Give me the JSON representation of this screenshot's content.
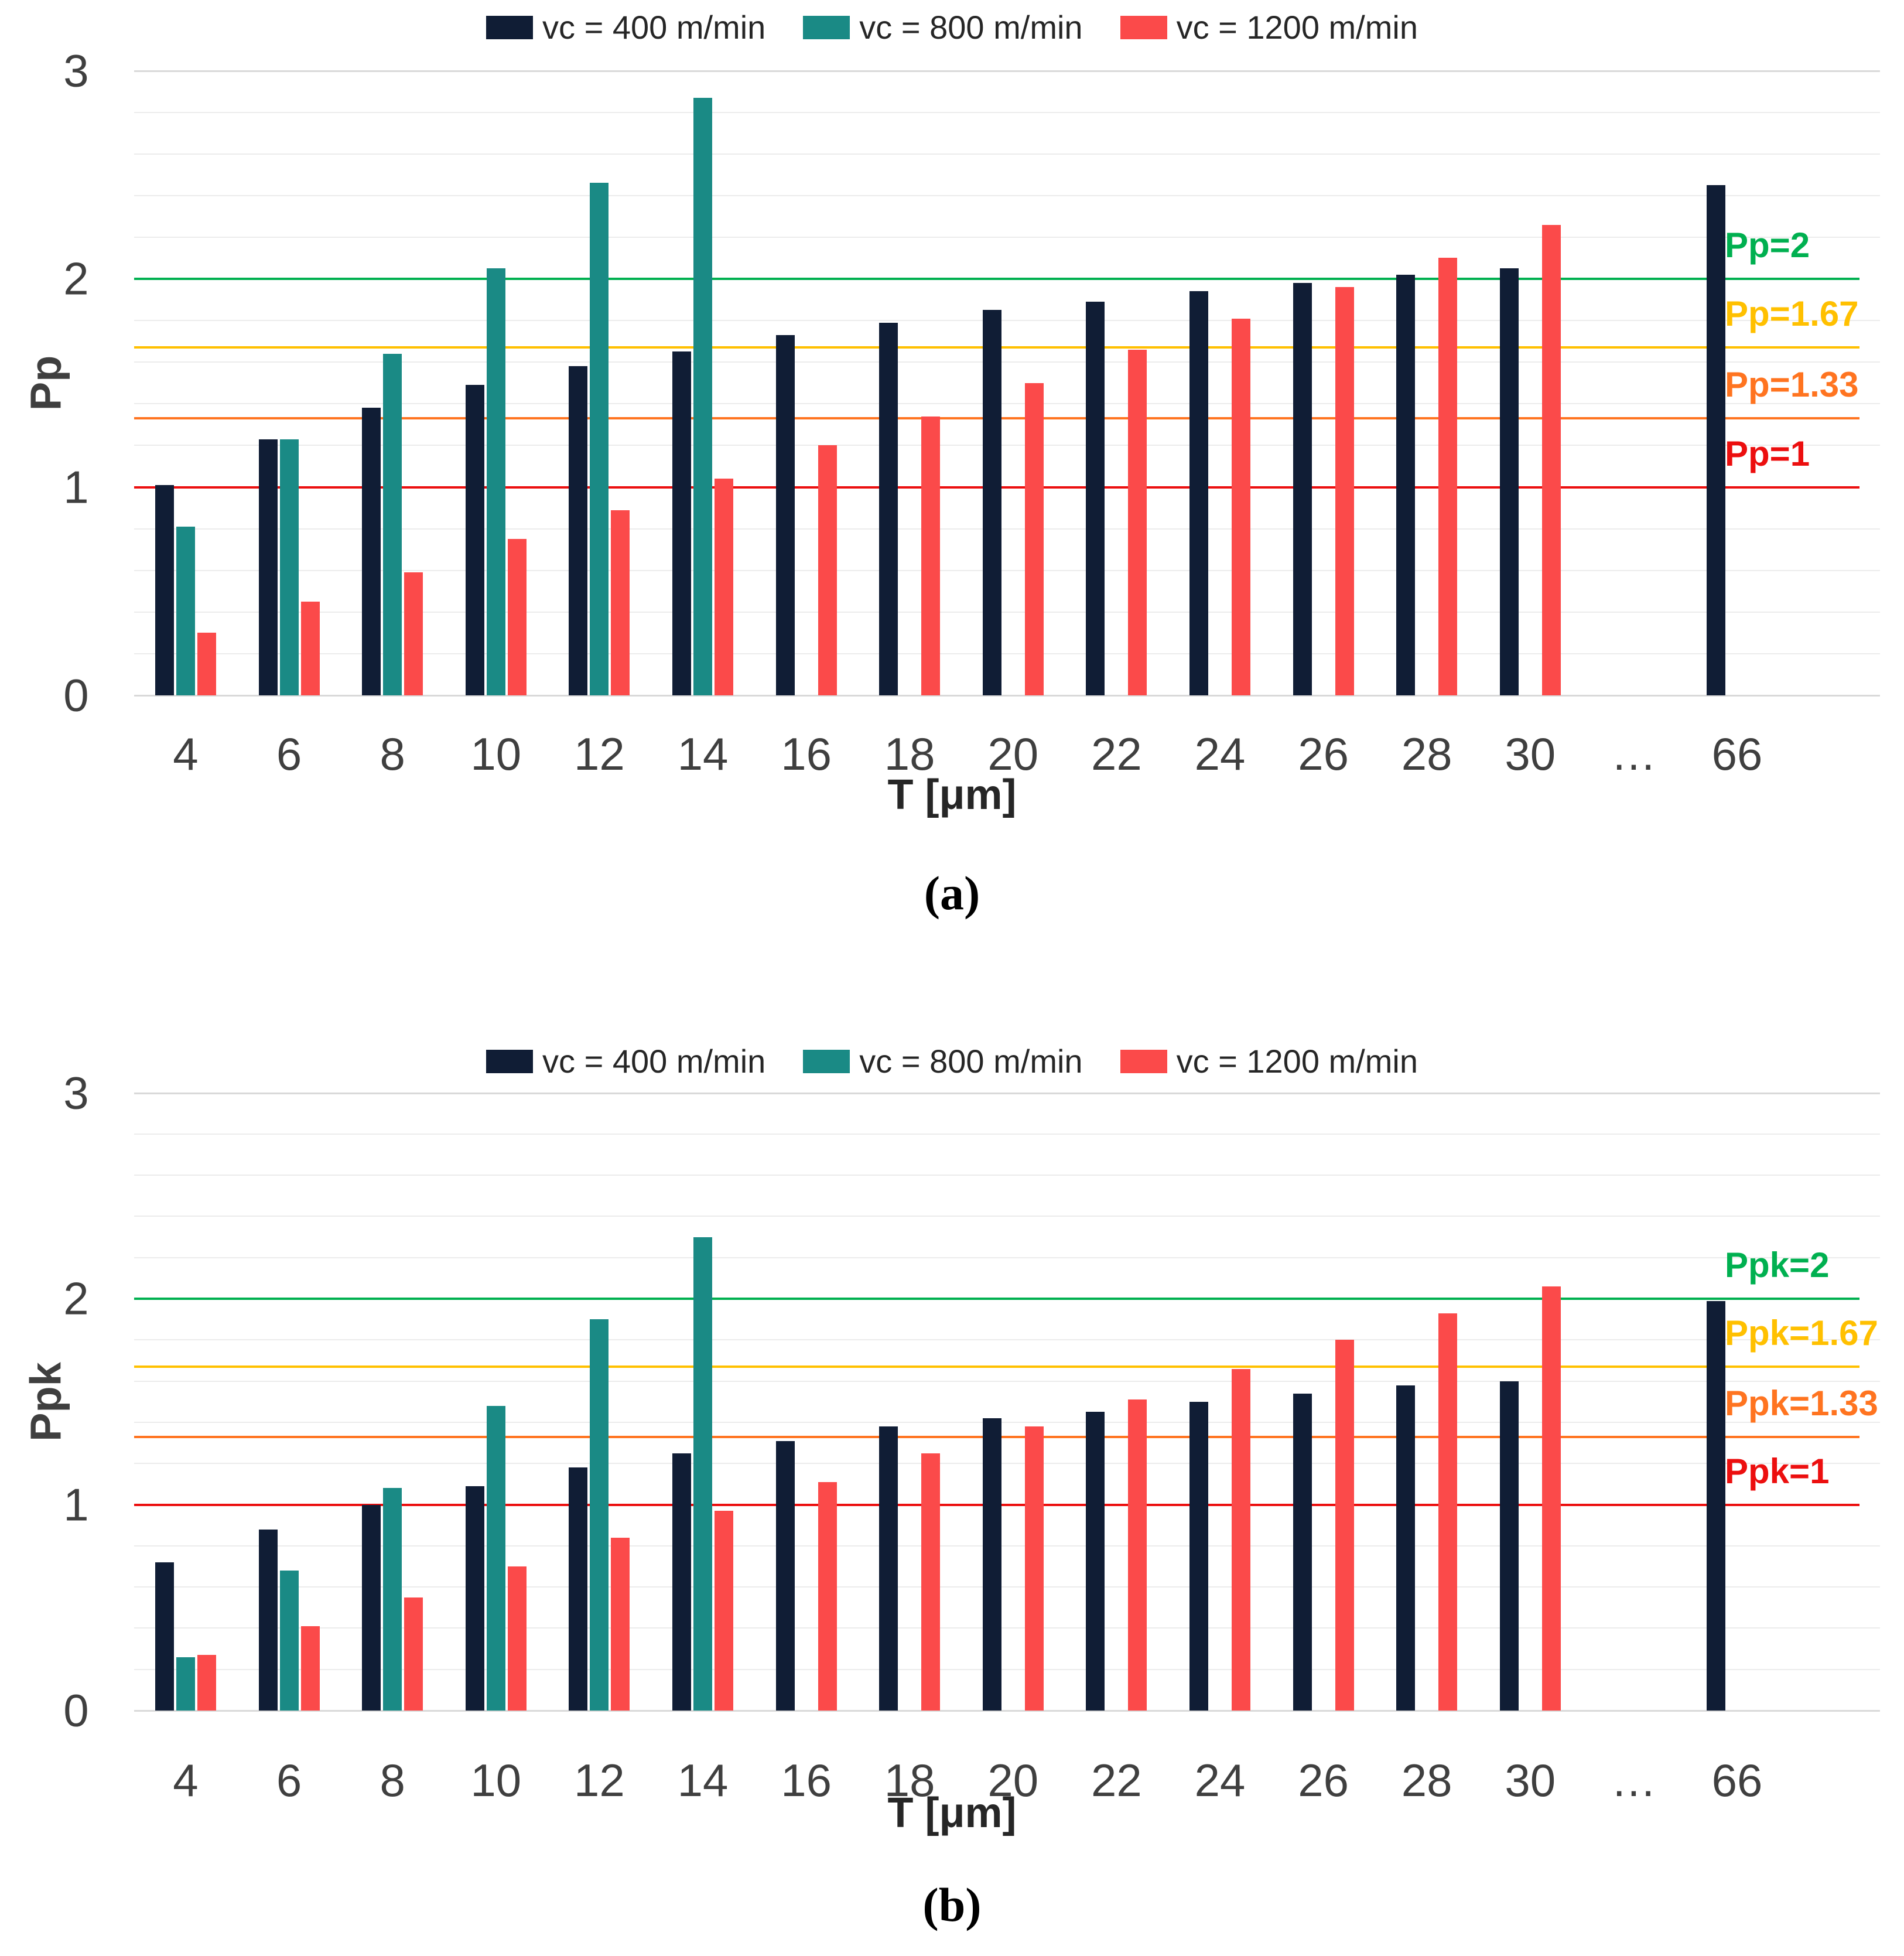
{
  "figure": {
    "background_color": "#ffffff"
  },
  "chart_data": [
    {
      "type": "bar",
      "panel": "a",
      "caption": "(a)",
      "title": "",
      "ylabel": "Pp",
      "xlabel": "T [μm]",
      "ylim": [
        0,
        3
      ],
      "y_ticks": [
        "3",
        "2",
        "1",
        "0"
      ],
      "grid": "horizontal minor gridlines every 0.2, on",
      "legend_position": "top-center",
      "categories": [
        "4",
        "6",
        "8",
        "10",
        "12",
        "14",
        "16",
        "18",
        "20",
        "22",
        "24",
        "26",
        "28",
        "30",
        "…",
        "66"
      ],
      "series": [
        {
          "name": "vc = 400 m/min",
          "color": "#101d35",
          "values": [
            1.01,
            1.23,
            1.38,
            1.49,
            1.58,
            1.65,
            1.73,
            1.79,
            1.85,
            1.89,
            1.94,
            1.98,
            2.02,
            2.05,
            null,
            2.45
          ]
        },
        {
          "name": "vc = 800 m/min",
          "color": "#1a8a85",
          "values": [
            0.81,
            1.23,
            1.64,
            2.05,
            2.46,
            2.87,
            null,
            null,
            null,
            null,
            null,
            null,
            null,
            null,
            null,
            null
          ]
        },
        {
          "name": "vc = 1200 m/min",
          "color": "#fb4a4a",
          "values": [
            0.3,
            0.45,
            0.59,
            0.75,
            0.89,
            1.04,
            1.2,
            1.34,
            1.5,
            1.66,
            1.81,
            1.96,
            2.1,
            2.26,
            null,
            null
          ]
        }
      ],
      "ref_lines": [
        {
          "label": "Pp=2",
          "value": 2,
          "color": "#00b050"
        },
        {
          "label": "Pp=1.67",
          "value": 1.67,
          "color": "#ffc000"
        },
        {
          "label": "Pp=1.33",
          "value": 1.33,
          "color": "#ff7420"
        },
        {
          "label": "Pp=1",
          "value": 1,
          "color": "#ec0f0f"
        }
      ]
    },
    {
      "type": "bar",
      "panel": "b",
      "caption": "(b)",
      "title": "",
      "ylabel": "Ppk",
      "xlabel": "T [μm]",
      "ylim": [
        0,
        3
      ],
      "y_ticks": [
        "3",
        "2",
        "1",
        "0"
      ],
      "grid": "horizontal minor gridlines every 0.2, on",
      "legend_position": "top-center",
      "categories": [
        "4",
        "6",
        "8",
        "10",
        "12",
        "14",
        "16",
        "18",
        "20",
        "22",
        "24",
        "26",
        "28",
        "30",
        "…",
        "66"
      ],
      "series": [
        {
          "name": "vc = 400 m/min",
          "color": "#101d35",
          "values": [
            0.72,
            0.88,
            1.0,
            1.09,
            1.18,
            1.25,
            1.31,
            1.38,
            1.42,
            1.45,
            1.5,
            1.54,
            1.58,
            1.6,
            null,
            1.99
          ]
        },
        {
          "name": "vc = 800 m/min",
          "color": "#1a8a85",
          "values": [
            0.26,
            0.68,
            1.08,
            1.48,
            1.9,
            2.3,
            null,
            null,
            null,
            null,
            null,
            null,
            null,
            null,
            null,
            null
          ]
        },
        {
          "name": "vc = 1200 m/min",
          "color": "#fb4a4a",
          "values": [
            0.27,
            0.41,
            0.55,
            0.7,
            0.84,
            0.97,
            1.11,
            1.25,
            1.38,
            1.51,
            1.66,
            1.8,
            1.93,
            2.06,
            null,
            null
          ]
        }
      ],
      "ref_lines": [
        {
          "label": "Ppk=2",
          "value": 2,
          "color": "#00b050"
        },
        {
          "label": "Ppk=1.67",
          "value": 1.67,
          "color": "#ffc000"
        },
        {
          "label": "Ppk=1.33",
          "value": 1.33,
          "color": "#ff7420"
        },
        {
          "label": "Ppk=1",
          "value": 1,
          "color": "#ec0f0f"
        }
      ]
    }
  ]
}
